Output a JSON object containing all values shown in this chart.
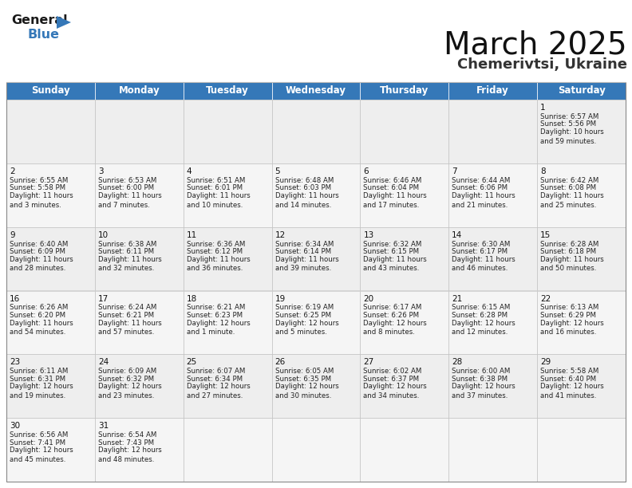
{
  "title": "March 2025",
  "subtitle": "Chemerivtsi, Ukraine",
  "header_color": "#3578B8",
  "header_text_color": "#FFFFFF",
  "bg_color": "#FFFFFF",
  "cell_bg_row0": "#EEEEEE",
  "cell_bg_row1": "#F5F5F5",
  "cell_bg_row2": "#EEEEEE",
  "cell_bg_row3": "#F5F5F5",
  "cell_bg_row4": "#EEEEEE",
  "cell_bg_row5": "#F5F5F5",
  "border_color": "#BBBBBB",
  "days_of_week": [
    "Sunday",
    "Monday",
    "Tuesday",
    "Wednesday",
    "Thursday",
    "Friday",
    "Saturday"
  ],
  "calendar_data": [
    [
      null,
      null,
      null,
      null,
      null,
      null,
      {
        "day": "1",
        "sunrise": "6:57 AM",
        "sunset": "5:56 PM",
        "daylight": "10 hours\nand 59 minutes."
      }
    ],
    [
      {
        "day": "2",
        "sunrise": "6:55 AM",
        "sunset": "5:58 PM",
        "daylight": "11 hours\nand 3 minutes."
      },
      {
        "day": "3",
        "sunrise": "6:53 AM",
        "sunset": "6:00 PM",
        "daylight": "11 hours\nand 7 minutes."
      },
      {
        "day": "4",
        "sunrise": "6:51 AM",
        "sunset": "6:01 PM",
        "daylight": "11 hours\nand 10 minutes."
      },
      {
        "day": "5",
        "sunrise": "6:48 AM",
        "sunset": "6:03 PM",
        "daylight": "11 hours\nand 14 minutes."
      },
      {
        "day": "6",
        "sunrise": "6:46 AM",
        "sunset": "6:04 PM",
        "daylight": "11 hours\nand 17 minutes."
      },
      {
        "day": "7",
        "sunrise": "6:44 AM",
        "sunset": "6:06 PM",
        "daylight": "11 hours\nand 21 minutes."
      },
      {
        "day": "8",
        "sunrise": "6:42 AM",
        "sunset": "6:08 PM",
        "daylight": "11 hours\nand 25 minutes."
      }
    ],
    [
      {
        "day": "9",
        "sunrise": "6:40 AM",
        "sunset": "6:09 PM",
        "daylight": "11 hours\nand 28 minutes."
      },
      {
        "day": "10",
        "sunrise": "6:38 AM",
        "sunset": "6:11 PM",
        "daylight": "11 hours\nand 32 minutes."
      },
      {
        "day": "11",
        "sunrise": "6:36 AM",
        "sunset": "6:12 PM",
        "daylight": "11 hours\nand 36 minutes."
      },
      {
        "day": "12",
        "sunrise": "6:34 AM",
        "sunset": "6:14 PM",
        "daylight": "11 hours\nand 39 minutes."
      },
      {
        "day": "13",
        "sunrise": "6:32 AM",
        "sunset": "6:15 PM",
        "daylight": "11 hours\nand 43 minutes."
      },
      {
        "day": "14",
        "sunrise": "6:30 AM",
        "sunset": "6:17 PM",
        "daylight": "11 hours\nand 46 minutes."
      },
      {
        "day": "15",
        "sunrise": "6:28 AM",
        "sunset": "6:18 PM",
        "daylight": "11 hours\nand 50 minutes."
      }
    ],
    [
      {
        "day": "16",
        "sunrise": "6:26 AM",
        "sunset": "6:20 PM",
        "daylight": "11 hours\nand 54 minutes."
      },
      {
        "day": "17",
        "sunrise": "6:24 AM",
        "sunset": "6:21 PM",
        "daylight": "11 hours\nand 57 minutes."
      },
      {
        "day": "18",
        "sunrise": "6:21 AM",
        "sunset": "6:23 PM",
        "daylight": "12 hours\nand 1 minute."
      },
      {
        "day": "19",
        "sunrise": "6:19 AM",
        "sunset": "6:25 PM",
        "daylight": "12 hours\nand 5 minutes."
      },
      {
        "day": "20",
        "sunrise": "6:17 AM",
        "sunset": "6:26 PM",
        "daylight": "12 hours\nand 8 minutes."
      },
      {
        "day": "21",
        "sunrise": "6:15 AM",
        "sunset": "6:28 PM",
        "daylight": "12 hours\nand 12 minutes."
      },
      {
        "day": "22",
        "sunrise": "6:13 AM",
        "sunset": "6:29 PM",
        "daylight": "12 hours\nand 16 minutes."
      }
    ],
    [
      {
        "day": "23",
        "sunrise": "6:11 AM",
        "sunset": "6:31 PM",
        "daylight": "12 hours\nand 19 minutes."
      },
      {
        "day": "24",
        "sunrise": "6:09 AM",
        "sunset": "6:32 PM",
        "daylight": "12 hours\nand 23 minutes."
      },
      {
        "day": "25",
        "sunrise": "6:07 AM",
        "sunset": "6:34 PM",
        "daylight": "12 hours\nand 27 minutes."
      },
      {
        "day": "26",
        "sunrise": "6:05 AM",
        "sunset": "6:35 PM",
        "daylight": "12 hours\nand 30 minutes."
      },
      {
        "day": "27",
        "sunrise": "6:02 AM",
        "sunset": "6:37 PM",
        "daylight": "12 hours\nand 34 minutes."
      },
      {
        "day": "28",
        "sunrise": "6:00 AM",
        "sunset": "6:38 PM",
        "daylight": "12 hours\nand 37 minutes."
      },
      {
        "day": "29",
        "sunrise": "5:58 AM",
        "sunset": "6:40 PM",
        "daylight": "12 hours\nand 41 minutes."
      }
    ],
    [
      {
        "day": "30",
        "sunrise": "6:56 AM",
        "sunset": "7:41 PM",
        "daylight": "12 hours\nand 45 minutes."
      },
      {
        "day": "31",
        "sunrise": "6:54 AM",
        "sunset": "7:43 PM",
        "daylight": "12 hours\nand 48 minutes."
      },
      null,
      null,
      null,
      null,
      null
    ]
  ],
  "logo_general_color": "#1A1A1A",
  "logo_blue_color": "#3578B8",
  "logo_triangle_color": "#3578B8"
}
